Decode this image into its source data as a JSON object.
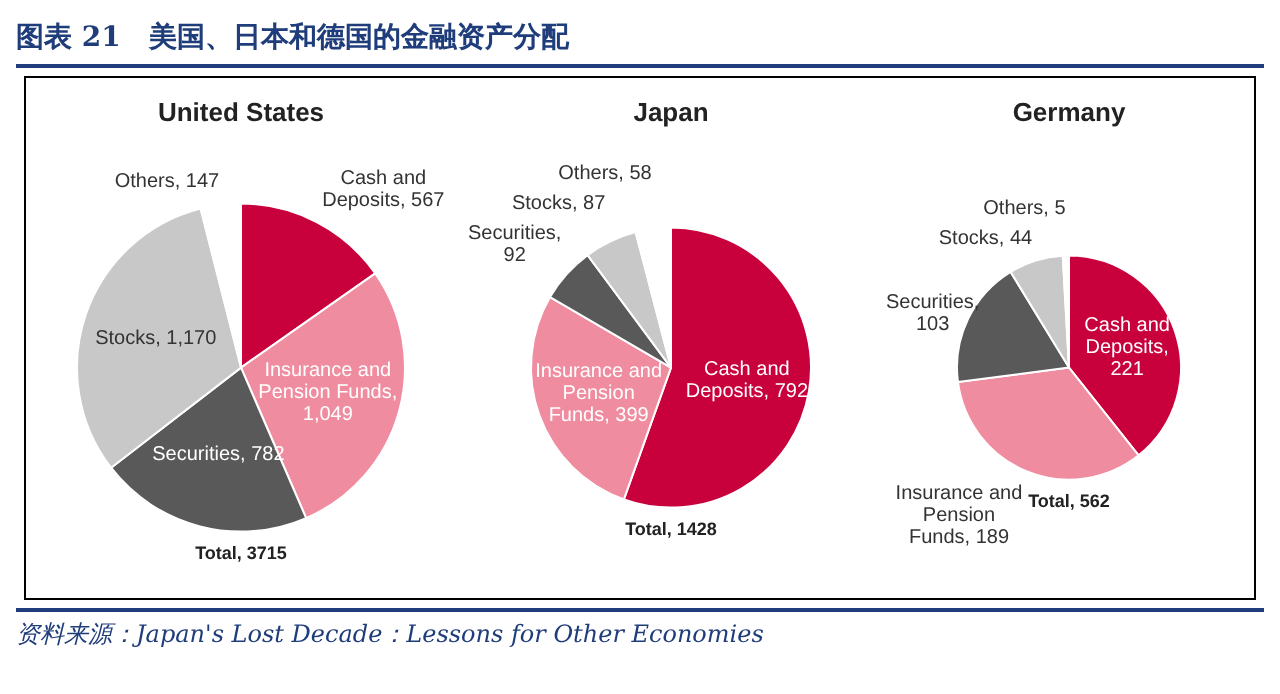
{
  "chart_data": [
    {
      "type": "pie",
      "title": "United States",
      "subtitle": "图表 21　美国、日本和德国的金融资产分配",
      "categories": [
        "Cash and Deposits, 567",
        "Insurance and Pension Funds, 1,049",
        "Securities, 782",
        "Stocks, 1,170",
        "Others, 147"
      ],
      "values": [
        567,
        1049,
        782,
        1170,
        147
      ],
      "colors": [
        "#c8003c",
        "#f08ca0",
        "#595959",
        "#c8c8c8",
        "#ffffff"
      ],
      "annotations": [
        "Total, 3715"
      ]
    },
    {
      "type": "pie",
      "title": "Japan",
      "categories": [
        "Cash and Deposits, 792",
        "Insurance and Pension Funds, 399",
        "Securities, 92",
        "Stocks, 87",
        "Others, 58"
      ],
      "values": [
        792,
        399,
        92,
        87,
        58
      ],
      "colors": [
        "#c8003c",
        "#f08ca0",
        "#595959",
        "#c8c8c8",
        "#ffffff"
      ],
      "annotations": [
        "Total, 1428"
      ]
    },
    {
      "type": "pie",
      "title": "Germany",
      "categories": [
        "Cash and Deposits, 221",
        "Insurance and Pension Funds, 189",
        "Securities, 103",
        "Stocks, 44",
        "Others, 5"
      ],
      "values": [
        221,
        189,
        103,
        44,
        5
      ],
      "colors": [
        "#c8003c",
        "#f08ca0",
        "#595959",
        "#c8c8c8",
        "#ffffff"
      ],
      "annotations": [
        "Total, 562",
        "资料来源：Japan's Lost Decade：Lessons for Other Economies"
      ]
    }
  ]
}
